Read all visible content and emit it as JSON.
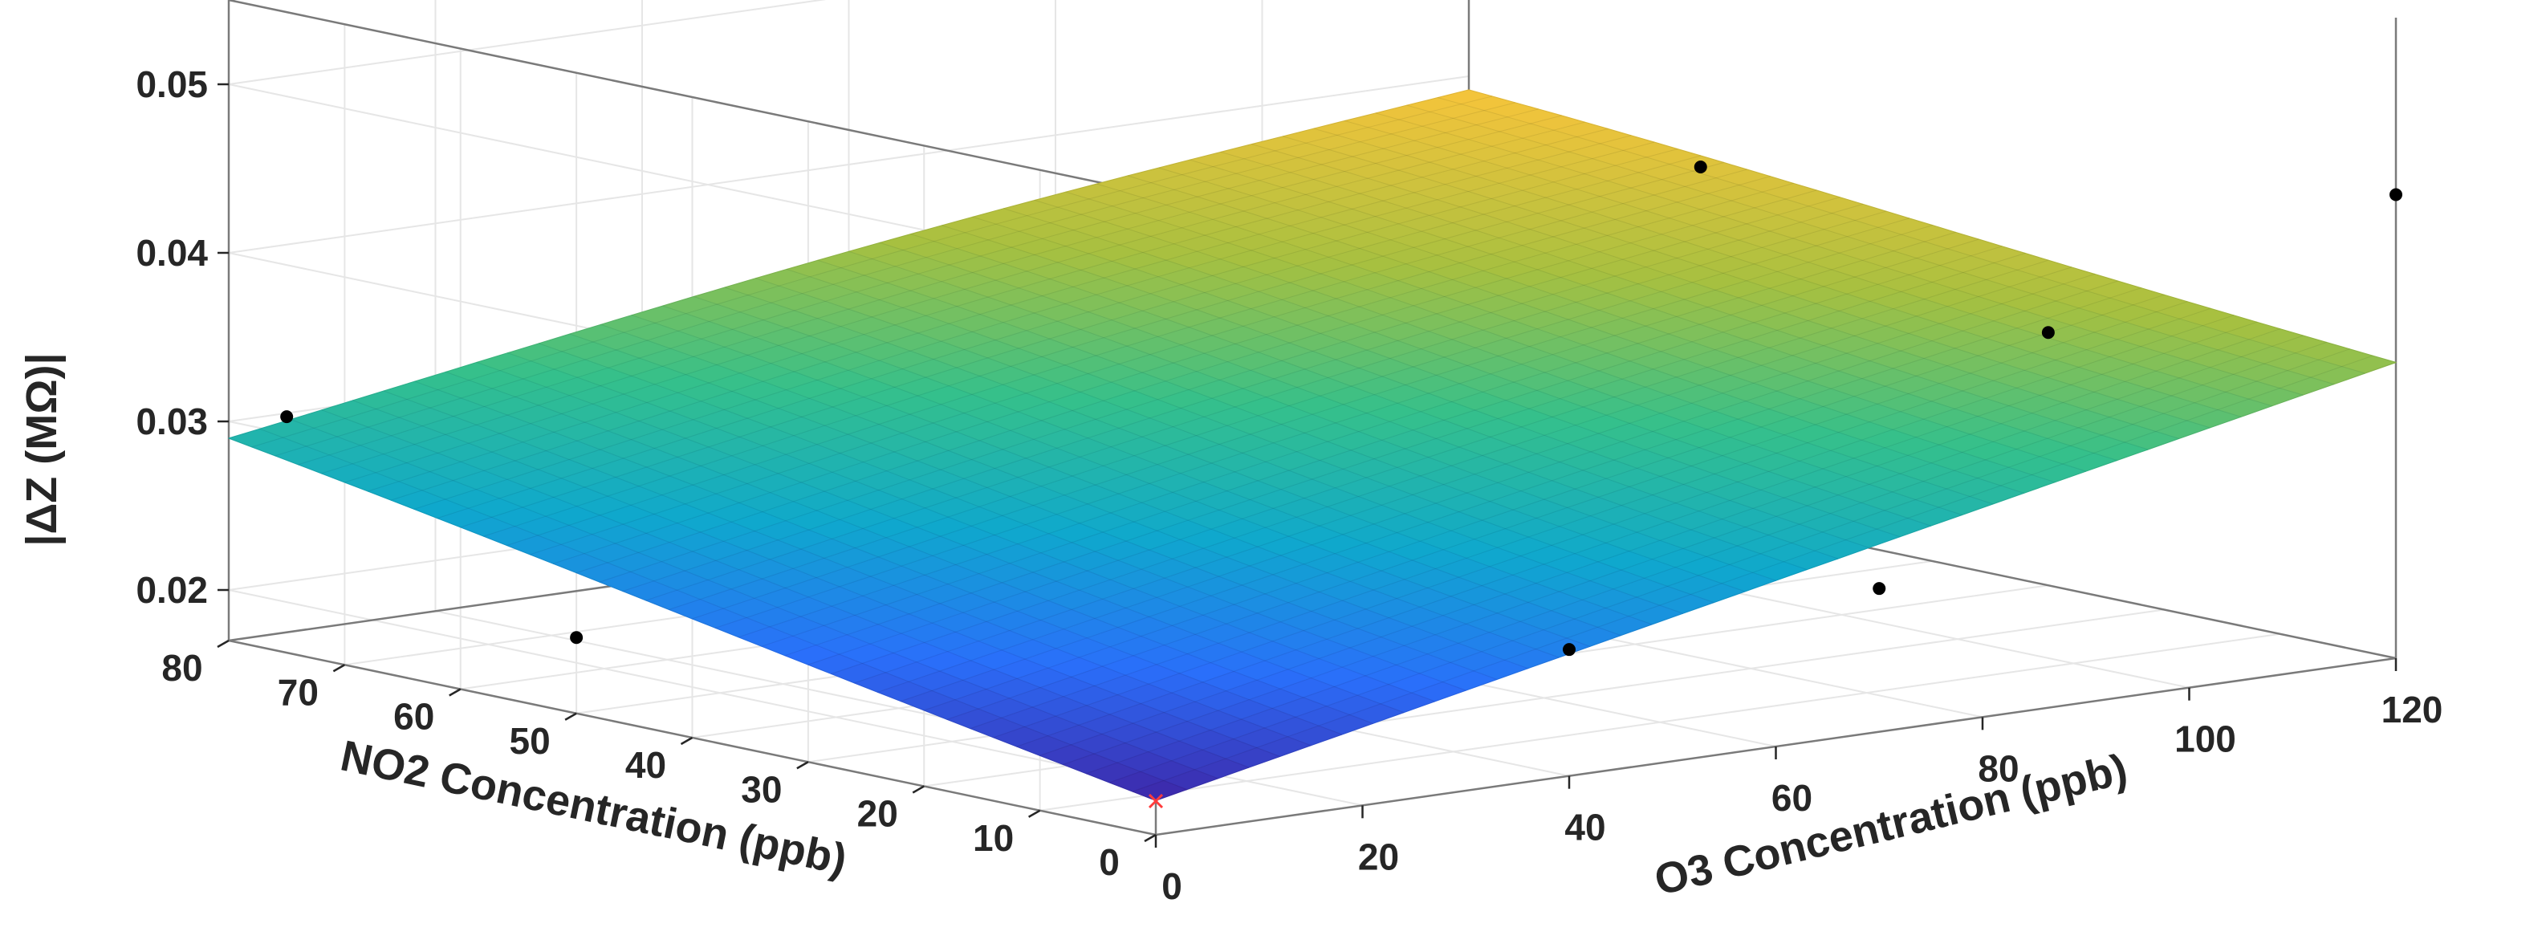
{
  "chart_data": {
    "type": "surface",
    "xlabel": "O3 Concentration (ppb)",
    "ylabel": "NO2 Concentration (ppb)",
    "zlabel": "|ΔZ (MΩ)|",
    "x_ticks": [
      "0",
      "20",
      "40",
      "60",
      "80",
      "100",
      "120"
    ],
    "y_ticks": [
      "0",
      "10",
      "20",
      "30",
      "40",
      "50",
      "60",
      "70",
      "80"
    ],
    "z_ticks": [
      "0.02",
      "0.03",
      "0.04",
      "0.05"
    ],
    "xlim": [
      0,
      120
    ],
    "ylim": [
      0,
      80
    ],
    "zlim": [
      0.017,
      0.055
    ],
    "grid": true,
    "colormap": [
      "#3e26a8",
      "#2a6ffa",
      "#0fa8cd",
      "#35c08b",
      "#a7c040",
      "#f6c43b"
    ],
    "surface": {
      "x_range": [
        0,
        120
      ],
      "y_range": [
        0,
        80
      ],
      "corners": {
        "x0_y0": 0.019,
        "x120_y0": 0.0345,
        "x0_y80": 0.0285,
        "x120_y80": 0.0385
      },
      "max_value": 0.0395
    },
    "points": [
      {
        "x": 0,
        "y": 75,
        "z": 0.031
      },
      {
        "x": 0,
        "y": 50,
        "z": 0.0215
      },
      {
        "x": 40,
        "y": 0,
        "z": 0.0245
      },
      {
        "x": 120,
        "y": 0,
        "z": 0.0445
      },
      {
        "x": 70,
        "y": 0,
        "z": 0.0255
      },
      {
        "x": 120,
        "y": 60,
        "z": 0.0375
      },
      {
        "x": 120,
        "y": 30,
        "z": 0.032
      }
    ],
    "excluded_points": [
      {
        "x": 0,
        "y": 0,
        "z": 0.019
      }
    ]
  }
}
